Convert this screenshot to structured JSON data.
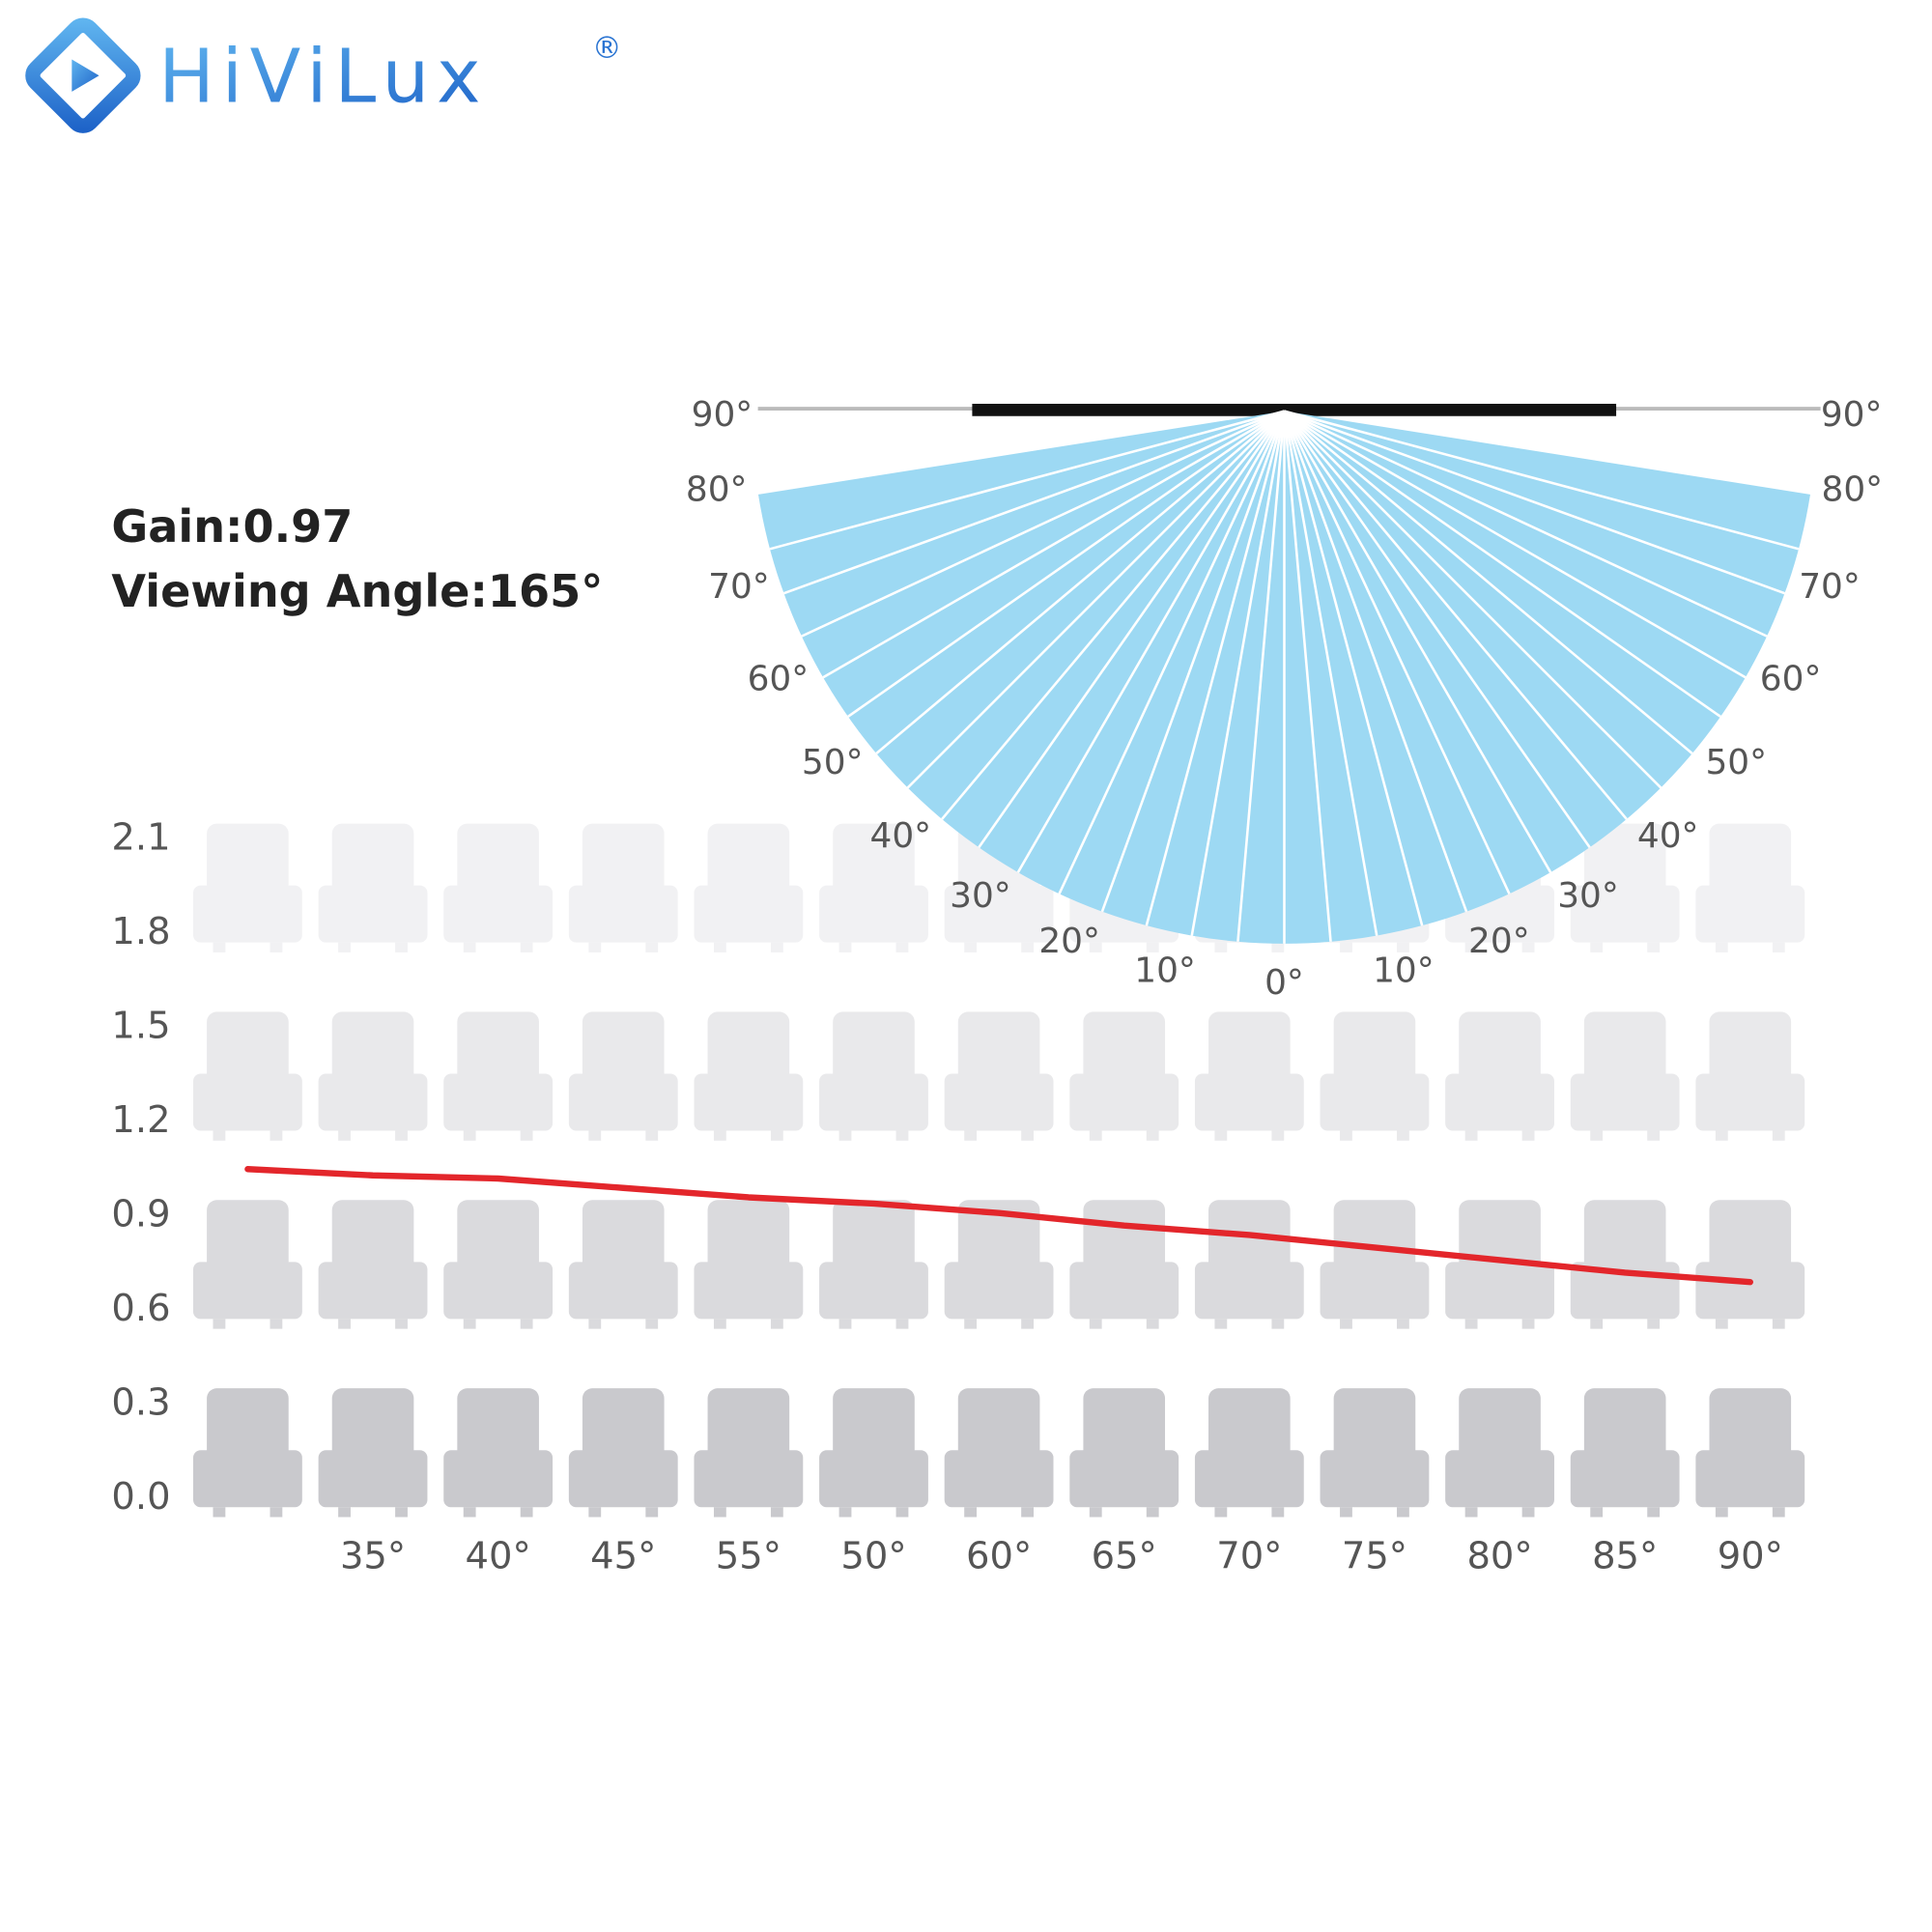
{
  "logo": {
    "text": "HiViLux",
    "mark": "®"
  },
  "chart_data": {
    "type": "line",
    "title": "Gain:0.97",
    "subtitle": "Viewing Angle:165°",
    "categories": [
      null,
      "35°",
      "40°",
      "45°",
      "55°",
      "50°",
      "60°",
      "65°",
      "70°",
      "75°",
      "80°",
      "85°",
      "90°"
    ],
    "values": [
      1.05,
      1.03,
      1.02,
      0.99,
      0.96,
      0.94,
      0.91,
      0.87,
      0.84,
      0.8,
      0.76,
      0.72,
      0.69
    ],
    "color": "#e3262b",
    "ylim": [
      0,
      2.1
    ],
    "yticks": [
      {
        "value": 0,
        "label": "0.0"
      },
      0.3,
      0.6,
      0.9,
      1.2,
      1.5,
      1.8,
      2.1
    ],
    "fan": {
      "left_labels": [
        "90°",
        "80°",
        "70°",
        "60°",
        "50°",
        "40°",
        "30°",
        "20°",
        "10°"
      ],
      "center_label": "0°",
      "right_labels": [
        "10°",
        "20°",
        "30°",
        "40°",
        "50°",
        "60°",
        "70°",
        "80°",
        "90°"
      ],
      "color": "#9dd9f3"
    }
  }
}
